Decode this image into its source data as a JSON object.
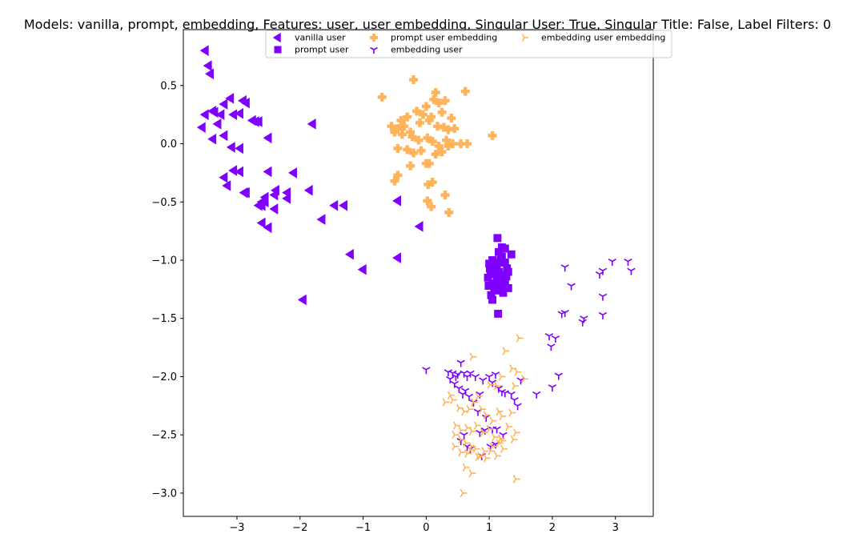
{
  "chart_data": {
    "type": "scatter",
    "title": "Models: vanilla, prompt, embedding, Features: user, user embedding, Singular User: True, Singular Title: False, Label Filters: 0",
    "xlabel": "",
    "ylabel": "",
    "xlim": [
      -3.85,
      3.6
    ],
    "ylim": [
      -3.2,
      0.98
    ],
    "xticks": [
      -3,
      -2,
      -1,
      0,
      1,
      2,
      3
    ],
    "yticks": [
      0.5,
      0.0,
      -0.5,
      -1.0,
      -1.5,
      -2.0,
      -2.5,
      -3.0
    ],
    "xtick_labels": [
      "−3",
      "−2",
      "−1",
      "0",
      "1",
      "2",
      "3"
    ],
    "ytick_labels": [
      "0.5",
      "0.0",
      "−0.5",
      "−1.0",
      "−1.5",
      "−2.0",
      "−2.5",
      "−3.0"
    ],
    "grid": false,
    "legend": {
      "placement": "top-center",
      "columns": 3
    },
    "series": [
      {
        "name": "vanilla user",
        "marker": "triangle-left",
        "color": "#7f00ff",
        "x": [
          -3.5,
          -3.45,
          -3.42,
          -3.38,
          -3.35,
          -3.3,
          -3.25,
          -3.2,
          -3.1,
          -3.05,
          -2.95,
          -2.9,
          -2.85,
          -2.75,
          -2.7,
          -2.65,
          -2.6,
          -3.55,
          -3.5,
          -3.38,
          -3.2,
          -3.08,
          -2.95,
          -2.88,
          -2.5,
          -1.8,
          -3.2,
          -3.15,
          -3.05,
          -2.95,
          -2.85,
          -2.5,
          -2.38,
          -2.2,
          -2.1,
          -2.4,
          -2.2,
          -1.85,
          -2.55,
          -2.6,
          -2.65,
          -2.5,
          -2.6,
          -2.4,
          -1.45,
          -1.3,
          -1.65,
          -2.55,
          -0.45,
          -0.1,
          -0.45,
          -1.2,
          -1.0,
          -1.95
        ],
        "y": [
          0.8,
          0.67,
          0.6,
          0.28,
          0.27,
          0.17,
          0.25,
          0.34,
          0.39,
          0.25,
          0.26,
          0.37,
          0.35,
          0.2,
          0.19,
          0.19,
          -0.5,
          0.14,
          0.25,
          0.04,
          0.07,
          -0.03,
          -0.04,
          -0.42,
          0.05,
          0.17,
          -0.29,
          -0.36,
          -0.23,
          -0.24,
          -0.42,
          -0.24,
          -0.4,
          -0.42,
          -0.25,
          -0.44,
          -0.47,
          -0.4,
          -0.46,
          -0.53,
          -0.53,
          -0.72,
          -0.68,
          -0.56,
          -0.53,
          -0.53,
          -0.65,
          -0.5,
          -0.49,
          -0.71,
          -0.98,
          -0.95,
          -1.08,
          -1.34
        ]
      },
      {
        "name": "prompt user",
        "marker": "square",
        "color": "#7f00ff",
        "x": [
          1.13,
          1.15,
          1.2,
          1.25,
          1.35,
          1.05,
          1.18,
          1.22,
          1.0,
          1.08,
          1.12,
          1.28,
          1.3,
          1.02,
          0.98,
          1.1,
          1.15,
          1.2,
          1.25,
          1.05,
          0.99,
          1.13,
          1.18,
          1.3,
          1.08,
          1.03,
          1.22,
          1.15,
          1.1,
          1.2,
          1.25,
          1.27,
          1.05,
          1.12,
          1.16,
          1.14,
          1.06,
          1.24,
          1.01,
          1.19,
          1.17
        ],
        "y": [
          -0.81,
          -0.93,
          -0.89,
          -0.9,
          -0.95,
          -1.0,
          -1.0,
          -1.02,
          -1.03,
          -1.05,
          -1.08,
          -1.07,
          -1.1,
          -1.12,
          -1.15,
          -1.12,
          -1.15,
          -1.18,
          -1.2,
          -1.2,
          -1.22,
          -1.24,
          -1.26,
          -1.24,
          -1.26,
          -1.3,
          -1.28,
          -1.1,
          -1.05,
          -0.97,
          -1.02,
          -1.14,
          -1.34,
          -1.18,
          -1.02,
          -1.46,
          -1.09,
          -1.16,
          -1.07,
          -1.13,
          -1.2
        ]
      },
      {
        "name": "prompt user embedding",
        "marker": "plus",
        "color": "#ffb35a",
        "x": [
          -0.2,
          0.15,
          -0.7,
          0.62,
          -0.5,
          -0.4,
          -0.3,
          -0.15,
          0.0,
          0.2,
          0.3,
          0.12,
          -0.05,
          0.08,
          0.25,
          0.4,
          -0.55,
          -0.45,
          -0.35,
          -0.25,
          -0.1,
          0.05,
          0.18,
          0.28,
          0.35,
          0.45,
          -0.5,
          -0.38,
          -0.22,
          -0.12,
          0.02,
          0.1,
          0.2,
          0.32,
          0.42,
          0.55,
          1.05,
          -0.45,
          -0.3,
          -0.2,
          -0.08,
          0.15,
          0.25,
          0.35,
          0.05,
          -0.25,
          -0.45,
          -0.5,
          0.0,
          0.1,
          0.03,
          0.3,
          0.02,
          0.08,
          0.36,
          0.65
        ],
        "y": [
          0.55,
          0.44,
          0.4,
          0.45,
          0.12,
          0.2,
          0.23,
          0.28,
          0.32,
          0.35,
          0.37,
          0.38,
          0.25,
          0.23,
          0.27,
          0.22,
          0.15,
          0.13,
          0.15,
          0.1,
          0.18,
          0.2,
          0.15,
          0.14,
          0.12,
          0.13,
          0.1,
          0.08,
          0.06,
          0.03,
          0.05,
          0.02,
          -0.02,
          0.03,
          0.0,
          0.0,
          0.07,
          -0.04,
          -0.05,
          -0.08,
          -0.06,
          -0.09,
          -0.07,
          -0.02,
          -0.17,
          -0.19,
          -0.27,
          -0.32,
          -0.17,
          -0.33,
          -0.35,
          -0.44,
          -0.49,
          -0.54,
          -0.59,
          0.0
        ]
      },
      {
        "name": "embedding user",
        "marker": "tri-down",
        "color": "#7f00ff",
        "x": [
          2.2,
          2.3,
          2.75,
          2.8,
          2.95,
          3.2,
          3.25,
          2.8,
          2.8,
          2.2,
          2.15,
          2.5,
          2.48,
          2.05,
          1.95,
          1.98,
          2.1,
          1.5,
          1.75,
          2.0,
          0.0,
          0.35,
          0.42,
          0.47,
          0.5,
          0.55,
          0.6,
          0.65,
          0.7,
          0.78,
          0.85,
          0.9,
          1.0,
          1.05,
          1.1,
          1.15,
          1.2,
          1.25,
          1.35,
          1.4,
          1.45,
          0.38,
          0.45,
          0.52,
          0.58,
          0.62,
          0.68,
          0.75,
          0.82,
          0.95,
          1.12,
          1.22,
          0.6,
          0.65,
          0.55,
          0.7,
          1.05,
          1.1,
          0.85,
          0.93,
          1.02,
          0.88
        ],
        "y": [
          -1.06,
          -1.22,
          -1.12,
          -1.09,
          -1.01,
          -1.01,
          -1.09,
          -1.31,
          -1.47,
          -1.45,
          -1.46,
          -1.5,
          -1.53,
          -1.67,
          -1.65,
          -1.74,
          -1.99,
          -2.03,
          -2.15,
          -2.09,
          -1.94,
          -1.96,
          -1.97,
          -2.0,
          -1.98,
          -1.88,
          -1.97,
          -2.0,
          -1.97,
          -2.0,
          -2.15,
          -2.03,
          -2.0,
          -2.05,
          -1.98,
          -2.1,
          -2.13,
          -2.14,
          -2.15,
          -2.2,
          -2.25,
          -2.02,
          -2.06,
          -2.1,
          -2.15,
          -2.12,
          -2.17,
          -2.22,
          -2.3,
          -2.35,
          -2.45,
          -2.5,
          -2.5,
          -2.6,
          -2.55,
          -2.62,
          -2.45,
          -2.58,
          -2.48,
          -2.46,
          -2.6,
          -2.68
        ]
      },
      {
        "name": "embedding user embedding",
        "marker": "tri-right",
        "color": "#ffb35a",
        "x": [
          1.47,
          1.25,
          0.73,
          1.36,
          1.44,
          1.19,
          1.01,
          1.12,
          1.4,
          1.55,
          0.38,
          0.42,
          0.52,
          0.6,
          0.68,
          0.75,
          0.82,
          0.88,
          0.95,
          1.05,
          1.15,
          1.2,
          1.35,
          0.3,
          0.47,
          0.55,
          0.65,
          0.72,
          0.8,
          0.9,
          1.0,
          1.08,
          1.18,
          1.3,
          1.42,
          0.45,
          0.55,
          0.63,
          0.7,
          0.78,
          0.85,
          0.95,
          1.02,
          1.12,
          1.22,
          1.38,
          0.45,
          0.55,
          0.65,
          0.72,
          0.82,
          0.92,
          1.05,
          1.15,
          0.62,
          0.72,
          1.42,
          0.58,
          1.2
        ],
        "y": [
          -1.67,
          -1.78,
          -1.83,
          -1.93,
          -1.96,
          -2.0,
          -2.07,
          -2.08,
          -2.08,
          -2.02,
          -2.16,
          -2.2,
          -2.27,
          -2.3,
          -2.28,
          -2.22,
          -2.17,
          -2.28,
          -2.33,
          -2.38,
          -2.3,
          -2.34,
          -2.31,
          -2.22,
          -2.42,
          -2.46,
          -2.44,
          -2.47,
          -2.42,
          -2.48,
          -2.45,
          -2.52,
          -2.53,
          -2.43,
          -2.48,
          -2.5,
          -2.54,
          -2.57,
          -2.63,
          -2.62,
          -2.68,
          -2.7,
          -2.64,
          -2.68,
          -2.62,
          -2.54,
          -2.6,
          -2.65,
          -2.66,
          -2.6,
          -2.69,
          -2.64,
          -2.6,
          -2.57,
          -2.78,
          -2.83,
          -2.88,
          -3.0,
          -2.55
        ]
      }
    ]
  }
}
